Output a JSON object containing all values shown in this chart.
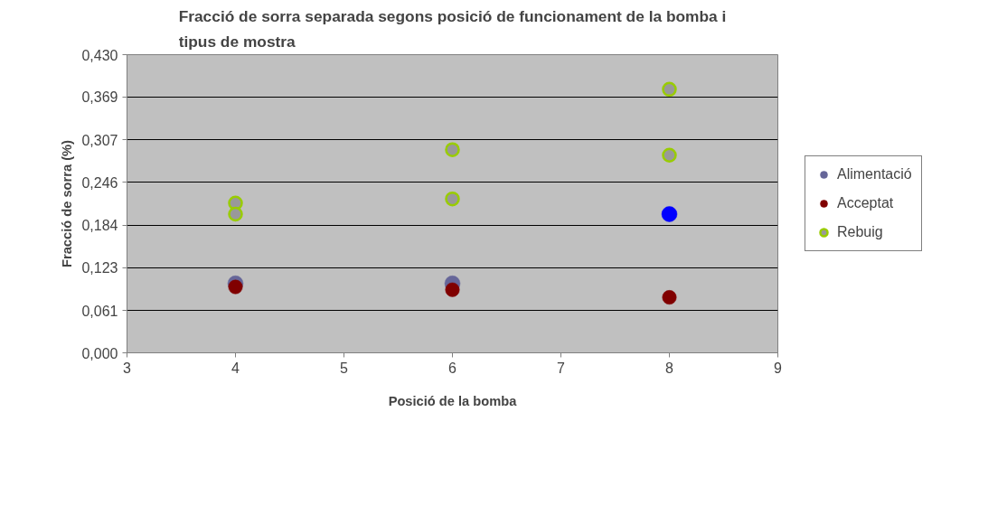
{
  "chart_data": {
    "type": "scatter",
    "title": "Fracció de sorra separada segons posició de funcionament de la bomba i tipus de mostra",
    "xlabel": "Posició de la bomba",
    "ylabel": "Fracció de sorra (%)",
    "x": [
      4,
      6,
      8
    ],
    "series": [
      {
        "name": "Alimentació",
        "color": "#666699",
        "colors": [
          "#666699",
          "#666699",
          "#0000ff"
        ],
        "values": [
          0.1,
          0.1,
          0.2
        ]
      },
      {
        "name": "Acceptat",
        "color": "#800000",
        "values": [
          0.095,
          0.091,
          0.08
        ]
      },
      {
        "name": "Rebuig",
        "color": "#99cc00",
        "x": [
          4,
          4,
          6,
          6,
          8,
          8
        ],
        "values": [
          0.216,
          0.2,
          0.293,
          0.222,
          0.38,
          0.285
        ]
      }
    ],
    "xlim": [
      3,
      9
    ],
    "xticks": [
      3,
      4,
      5,
      6,
      7,
      8,
      9
    ],
    "ylim": [
      0,
      0.43
    ],
    "yticks": [
      {
        "value": 0,
        "label": "0,000"
      },
      {
        "value": 0.061,
        "label": "0,061"
      },
      {
        "value": 0.123,
        "label": "0,123"
      },
      {
        "value": 0.184,
        "label": "0,184"
      },
      {
        "value": 0.246,
        "label": "0,246"
      },
      {
        "value": 0.307,
        "label": "0,307"
      },
      {
        "value": 0.369,
        "label": "0,369"
      },
      {
        "value": 0.43,
        "label": "0,430"
      }
    ],
    "grid": "y",
    "legend": "right",
    "marker": "circle"
  }
}
